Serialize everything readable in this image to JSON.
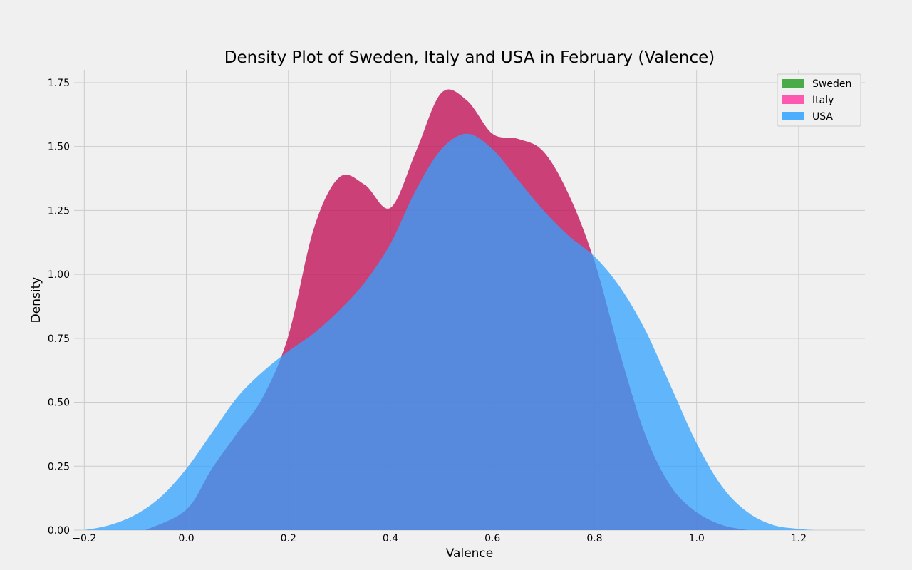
{
  "chart_data": {
    "type": "area",
    "title": "Density Plot of Sweden, Italy and USA in February (Valence)",
    "xlabel": "Valence",
    "ylabel": "Density",
    "xlim": [
      -0.22,
      1.33
    ],
    "ylim": [
      0,
      1.8
    ],
    "x_ticks": [
      -0.2,
      0.0,
      0.2,
      0.4,
      0.6,
      0.8,
      1.0,
      1.2
    ],
    "x_tick_labels": [
      "−0.2",
      "0.0",
      "0.2",
      "0.4",
      "0.6",
      "0.8",
      "1.0",
      "1.2"
    ],
    "y_ticks": [
      0,
      0.25,
      0.5,
      0.75,
      1.0,
      1.25,
      1.5,
      1.75
    ],
    "y_tick_labels": [
      "0.00",
      "0.25",
      "0.50",
      "0.75",
      "1.00",
      "1.25",
      "1.50",
      "1.75"
    ],
    "grid": true,
    "legend_position": "top-right",
    "series": [
      {
        "name": "Sweden",
        "color": "#2ca02c",
        "x": [],
        "y": []
      },
      {
        "name": "Italy",
        "color": "#ff3ea5",
        "x": [
          -0.08,
          0.0,
          0.05,
          0.1,
          0.15,
          0.2,
          0.25,
          0.3,
          0.35,
          0.4,
          0.45,
          0.5,
          0.55,
          0.6,
          0.65,
          0.7,
          0.75,
          0.8,
          0.85,
          0.9,
          0.95,
          1.0,
          1.05,
          1.1
        ],
        "y": [
          0.0,
          0.08,
          0.24,
          0.38,
          0.52,
          0.76,
          1.18,
          1.38,
          1.35,
          1.26,
          1.48,
          1.71,
          1.68,
          1.55,
          1.53,
          1.48,
          1.31,
          1.05,
          0.69,
          0.37,
          0.17,
          0.07,
          0.02,
          0.0
        ]
      },
      {
        "name": "USA",
        "color": "#30a2ff",
        "x": [
          -0.2,
          -0.15,
          -0.1,
          -0.05,
          0.0,
          0.05,
          0.1,
          0.15,
          0.2,
          0.25,
          0.3,
          0.35,
          0.4,
          0.45,
          0.5,
          0.55,
          0.6,
          0.65,
          0.7,
          0.75,
          0.8,
          0.85,
          0.9,
          0.95,
          1.0,
          1.05,
          1.1,
          1.15,
          1.2,
          1.23
        ],
        "y": [
          0.0,
          0.02,
          0.06,
          0.13,
          0.24,
          0.38,
          0.52,
          0.62,
          0.7,
          0.77,
          0.86,
          0.97,
          1.12,
          1.33,
          1.49,
          1.55,
          1.49,
          1.37,
          1.25,
          1.15,
          1.07,
          0.95,
          0.78,
          0.56,
          0.34,
          0.17,
          0.07,
          0.02,
          0.005,
          0.0
        ]
      }
    ]
  }
}
